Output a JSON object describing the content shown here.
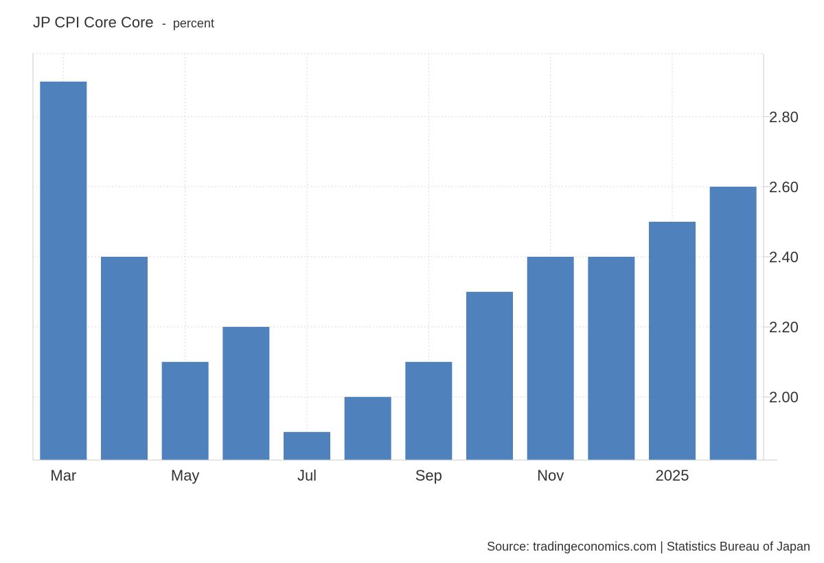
{
  "chart": {
    "title": "JP CPI Core Core",
    "title_separator": "-",
    "unit": "percent",
    "source": "Source: tradingeconomics.com | Statistics Bureau of Japan",
    "bar_color": "#4f81bd"
  },
  "chart_data": {
    "type": "bar",
    "title": "JP CPI Core Core",
    "subtitle": "percent",
    "categories": [
      "Mar 2024",
      "Apr 2024",
      "May 2024",
      "Jun 2024",
      "Jul 2024",
      "Aug 2024",
      "Sep 2024",
      "Oct 2024",
      "Nov 2024",
      "Dec 2024",
      "Jan 2025",
      "Feb 2025"
    ],
    "values": [
      2.9,
      2.4,
      2.1,
      2.2,
      1.9,
      2.0,
      2.1,
      2.3,
      2.4,
      2.4,
      2.5,
      2.6
    ],
    "x_tick_labels": [
      "Mar",
      "May",
      "Jul",
      "Sep",
      "Nov",
      "2025"
    ],
    "y_ticks": [
      "2.00",
      "2.20",
      "2.40",
      "2.60",
      "2.80"
    ],
    "ylim": [
      1.82,
      2.98
    ],
    "y_axis_side": "right",
    "grid": true,
    "legend": "none"
  }
}
